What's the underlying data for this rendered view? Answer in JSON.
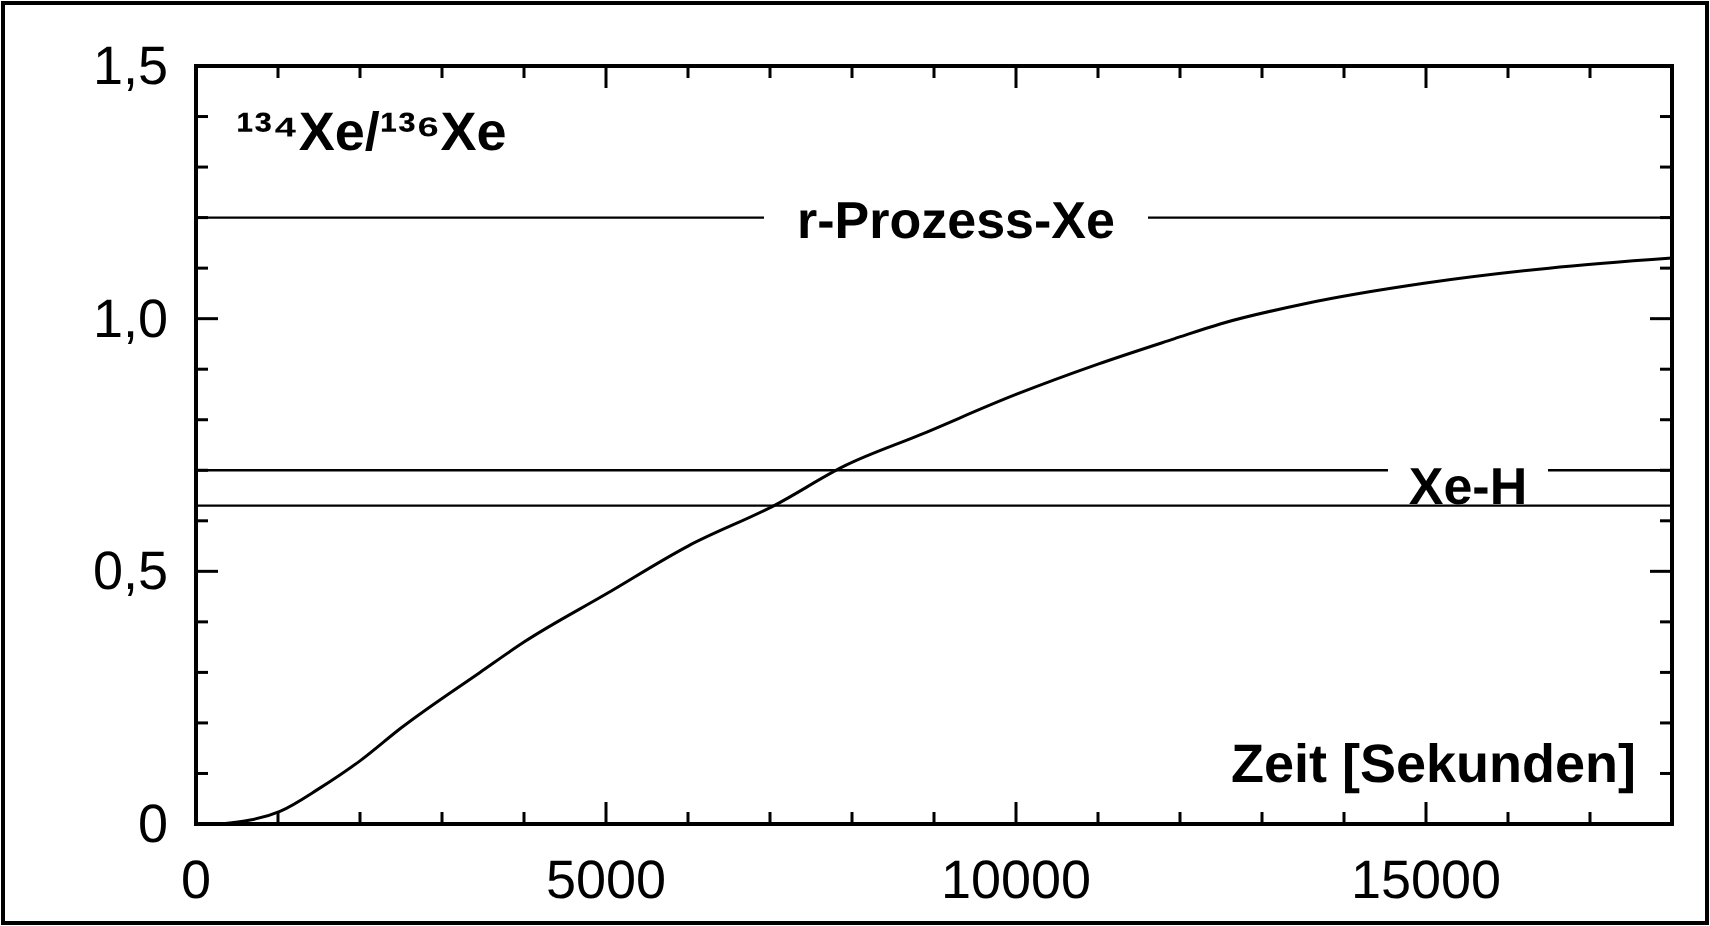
{
  "chart_data": {
    "type": "line",
    "ylabel": "¹³⁴Xe/¹³⁶Xe",
    "xlabel": "Zeit [Sekunden]",
    "x": [
      300,
      1024,
      1500,
      2000,
      2500,
      3463,
      4000,
      5000,
      6000,
      7050,
      7927,
      8829,
      10000,
      11000,
      11927,
      12500,
      13537,
      14976,
      16500,
      18000
    ],
    "series": [
      {
        "color": "#000000",
        "values": [
          0,
          0.025,
          0.07,
          0.125,
          0.19,
          0.3,
          0.36,
          0.455,
          0.55,
          0.63,
          0.71,
          0.77,
          0.85,
          0.91,
          0.96,
          0.99,
          1.03,
          1.07,
          1.1,
          1.12
        ]
      }
    ],
    "xlim": [
      0,
      18000
    ],
    "ylim": [
      0,
      1.5
    ],
    "xticks": [
      0,
      {
        "value": 1000,
        "label": null
      },
      {
        "value": 2000,
        "label": null
      },
      {
        "value": 3000,
        "label": null
      },
      {
        "value": 4000,
        "label": null
      },
      5000,
      {
        "value": 6000,
        "label": null
      },
      {
        "value": 7000,
        "label": null
      },
      {
        "value": 8000,
        "label": null
      },
      {
        "value": 9000,
        "label": null
      },
      10000,
      {
        "value": 11000,
        "label": null
      },
      {
        "value": 12000,
        "label": null
      },
      {
        "value": 13000,
        "label": null
      },
      {
        "value": 14000,
        "label": null
      },
      15000,
      {
        "value": 16000,
        "label": null
      },
      {
        "value": 17000,
        "label": null
      }
    ],
    "yticks": [
      {
        "value": 0,
        "label": "0"
      },
      {
        "value": 0.1,
        "label": null
      },
      {
        "value": 0.2,
        "label": null
      },
      {
        "value": 0.3,
        "label": null
      },
      {
        "value": 0.4,
        "label": null
      },
      {
        "value": 0.5,
        "label": "0,5"
      },
      {
        "value": 0.6,
        "label": null
      },
      {
        "value": 0.7,
        "label": null
      },
      {
        "value": 0.8,
        "label": null
      },
      {
        "value": 0.9,
        "label": null
      },
      {
        "value": 1.0,
        "label": "1,0"
      },
      {
        "value": 1.1,
        "label": null
      },
      {
        "value": 1.2,
        "label": null
      },
      {
        "value": 1.3,
        "label": null
      },
      {
        "value": 1.4,
        "label": null
      },
      {
        "value": 1.5,
        "label": "1,5"
      }
    ],
    "ref_lines": [
      {
        "axis": "y",
        "value": 1.2,
        "label": "r-Prozess-Xe",
        "color": "#000000"
      },
      {
        "axis": "y",
        "value": 0.7,
        "label": "Xe-H",
        "color": "#000000"
      },
      {
        "axis": "y",
        "value": 0.63,
        "color": "#000000"
      }
    ],
    "grid": false,
    "marker": "none",
    "line_style": "solid"
  }
}
